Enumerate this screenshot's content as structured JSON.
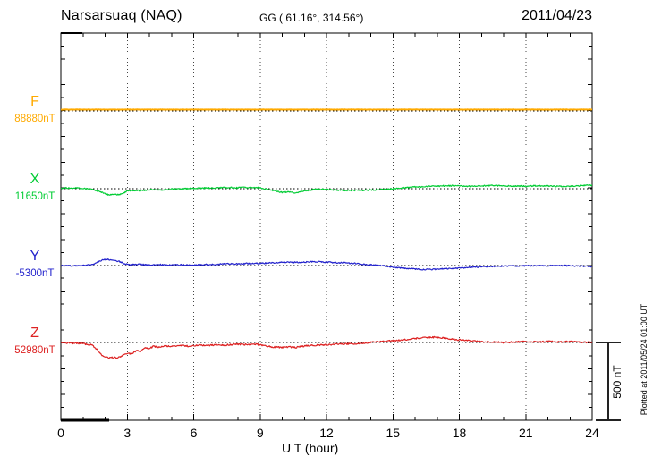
{
  "header": {
    "station": "Narsarsuaq (NAQ)",
    "coordinates": "GG ( 61.16°, 314.56°)",
    "date": "2011/04/23"
  },
  "x_axis": {
    "label": "U T (hour)"
  },
  "scale_bar": {
    "label": "500 nT"
  },
  "plotted_at": "Plotted at 2011/05/24 01:00 UT",
  "colors": {
    "F": "#FFAA00",
    "X": "#00CC33",
    "Y": "#2222CC",
    "Z": "#DD2222",
    "frame": "#000000",
    "grid": "#444444"
  },
  "chart_data": {
    "type": "line",
    "title": "Narsarsuaq (NAQ) magnetogram",
    "subtitle": "GG ( 61.16°, 314.56°)",
    "date": "2011/04/23",
    "xlabel": "U T (hour)",
    "x_range": [
      0,
      24
    ],
    "x_ticks": [
      0,
      3,
      6,
      9,
      12,
      15,
      18,
      21,
      24
    ],
    "grid": "dotted vertical lines every 3 hours, dotted horizontal baseline per channel",
    "scale_division_nT": 500,
    "legend_position": "left margin, one label per stacked trace",
    "series": [
      {
        "name": "F",
        "baseline_label": "88880nT",
        "baseline_value_nT": 88880,
        "color": "#FFAA00",
        "points_hour_offsetnT": [
          [
            0,
            9
          ],
          [
            6,
            9
          ],
          [
            12,
            9
          ],
          [
            18,
            9
          ],
          [
            24,
            9
          ]
        ]
      },
      {
        "name": "X",
        "baseline_label": "11650nT",
        "baseline_value_nT": 11650,
        "color": "#00CC33",
        "points_hour_offsetnT": [
          [
            0,
            5
          ],
          [
            0.7,
            4
          ],
          [
            1.2,
            0
          ],
          [
            1.5,
            -8
          ],
          [
            1.8,
            -20
          ],
          [
            2.0,
            -30
          ],
          [
            2.2,
            -42
          ],
          [
            2.4,
            -34
          ],
          [
            2.6,
            -40
          ],
          [
            2.8,
            -30
          ],
          [
            3.0,
            -14
          ],
          [
            3.3,
            -10
          ],
          [
            3.6,
            -12
          ],
          [
            4.0,
            -6
          ],
          [
            4.5,
            -8
          ],
          [
            5.0,
            -3
          ],
          [
            5.5,
            0
          ],
          [
            6.0,
            2
          ],
          [
            6.5,
            4
          ],
          [
            7.0,
            5
          ],
          [
            7.5,
            8
          ],
          [
            8.0,
            6
          ],
          [
            8.5,
            9
          ],
          [
            9.0,
            6
          ],
          [
            9.4,
            -6
          ],
          [
            9.7,
            -16
          ],
          [
            10.0,
            -24
          ],
          [
            10.3,
            -20
          ],
          [
            10.6,
            -26
          ],
          [
            11.0,
            -16
          ],
          [
            11.4,
            -6
          ],
          [
            11.8,
            -4
          ],
          [
            12.2,
            -6
          ],
          [
            12.6,
            -9
          ],
          [
            13.0,
            -11
          ],
          [
            13.5,
            -11
          ],
          [
            14.0,
            -8
          ],
          [
            14.5,
            -5
          ],
          [
            15.0,
            0
          ],
          [
            15.5,
            6
          ],
          [
            16.0,
            11
          ],
          [
            16.5,
            14
          ],
          [
            17.0,
            17
          ],
          [
            17.5,
            20
          ],
          [
            18.0,
            18
          ],
          [
            18.5,
            16
          ],
          [
            19.0,
            18
          ],
          [
            19.5,
            21
          ],
          [
            20.0,
            19
          ],
          [
            20.5,
            17
          ],
          [
            21.0,
            17
          ],
          [
            21.5,
            19
          ],
          [
            22.0,
            17
          ],
          [
            22.5,
            15
          ],
          [
            23.0,
            17
          ],
          [
            23.5,
            20
          ],
          [
            24.0,
            23
          ]
        ]
      },
      {
        "name": "Y",
        "baseline_label": "-5300nT",
        "baseline_value_nT": -5300,
        "color": "#2222CC",
        "points_hour_offsetnT": [
          [
            0,
            0
          ],
          [
            0.5,
            -2
          ],
          [
            1.0,
            0
          ],
          [
            1.4,
            5
          ],
          [
            1.7,
            25
          ],
          [
            1.9,
            38
          ],
          [
            2.1,
            40
          ],
          [
            2.3,
            35
          ],
          [
            2.6,
            28
          ],
          [
            2.9,
            10
          ],
          [
            3.2,
            5
          ],
          [
            3.6,
            8
          ],
          [
            4.0,
            3
          ],
          [
            4.5,
            6
          ],
          [
            5.0,
            3
          ],
          [
            5.5,
            5
          ],
          [
            6.0,
            3
          ],
          [
            6.5,
            6
          ],
          [
            7.0,
            8
          ],
          [
            7.5,
            11
          ],
          [
            8.0,
            11
          ],
          [
            8.5,
            14
          ],
          [
            9.0,
            14
          ],
          [
            9.5,
            17
          ],
          [
            9.9,
            20
          ],
          [
            10.3,
            22
          ],
          [
            10.7,
            20
          ],
          [
            11.1,
            23
          ],
          [
            11.5,
            25
          ],
          [
            12.0,
            22
          ],
          [
            12.5,
            19
          ],
          [
            13.0,
            16
          ],
          [
            13.5,
            11
          ],
          [
            14.0,
            5
          ],
          [
            14.5,
            0
          ],
          [
            15.0,
            -10
          ],
          [
            15.5,
            -17
          ],
          [
            16.0,
            -22
          ],
          [
            16.5,
            -26
          ],
          [
            17.0,
            -23
          ],
          [
            17.5,
            -20
          ],
          [
            18.0,
            -17
          ],
          [
            18.5,
            -12
          ],
          [
            19.0,
            -9
          ],
          [
            19.5,
            -6
          ],
          [
            20.0,
            -3
          ],
          [
            20.5,
            -3
          ],
          [
            21.0,
            -1
          ],
          [
            21.5,
            0
          ],
          [
            22.0,
            -1
          ],
          [
            22.5,
            0
          ],
          [
            23.0,
            -1
          ],
          [
            23.5,
            -3
          ],
          [
            24.0,
            -6
          ]
        ]
      },
      {
        "name": "Z",
        "baseline_label": "52980nT",
        "baseline_value_nT": 52980,
        "color": "#DD2222",
        "points_hour_offsetnT": [
          [
            0,
            0
          ],
          [
            0.4,
            -3
          ],
          [
            0.8,
            -6
          ],
          [
            1.1,
            -9
          ],
          [
            1.4,
            -17
          ],
          [
            1.6,
            -40
          ],
          [
            1.8,
            -75
          ],
          [
            2.0,
            -92
          ],
          [
            2.2,
            -100
          ],
          [
            2.4,
            -95
          ],
          [
            2.6,
            -98
          ],
          [
            2.8,
            -80
          ],
          [
            3.0,
            -69
          ],
          [
            3.2,
            -72
          ],
          [
            3.4,
            -52
          ],
          [
            3.6,
            -58
          ],
          [
            3.8,
            -35
          ],
          [
            4.0,
            -40
          ],
          [
            4.2,
            -23
          ],
          [
            4.4,
            -32
          ],
          [
            4.7,
            -23
          ],
          [
            5.0,
            -26
          ],
          [
            5.4,
            -20
          ],
          [
            5.8,
            -23
          ],
          [
            6.2,
            -17
          ],
          [
            6.6,
            -20
          ],
          [
            7.0,
            -14
          ],
          [
            7.4,
            -17
          ],
          [
            7.8,
            -12
          ],
          [
            8.2,
            -14
          ],
          [
            8.6,
            -11
          ],
          [
            9.0,
            -14
          ],
          [
            9.3,
            -23
          ],
          [
            9.6,
            -29
          ],
          [
            10.0,
            -32
          ],
          [
            10.3,
            -29
          ],
          [
            10.6,
            -32
          ],
          [
            11.0,
            -23
          ],
          [
            11.5,
            -17
          ],
          [
            12.0,
            -14
          ],
          [
            12.5,
            -11
          ],
          [
            13.0,
            -9
          ],
          [
            13.5,
            -6
          ],
          [
            14.0,
            0
          ],
          [
            14.5,
            6
          ],
          [
            15.0,
            11
          ],
          [
            15.5,
            17
          ],
          [
            16.0,
            26
          ],
          [
            16.4,
            31
          ],
          [
            16.8,
            34
          ],
          [
            17.2,
            31
          ],
          [
            17.6,
            23
          ],
          [
            18.0,
            17
          ],
          [
            18.5,
            11
          ],
          [
            19.0,
            6
          ],
          [
            19.5,
            3
          ],
          [
            20.0,
            0
          ],
          [
            20.5,
            3
          ],
          [
            21.0,
            6
          ],
          [
            21.5,
            3
          ],
          [
            22.0,
            6
          ],
          [
            22.5,
            3
          ],
          [
            23.0,
            6
          ],
          [
            23.5,
            2
          ],
          [
            24.0,
            1
          ]
        ]
      }
    ]
  }
}
